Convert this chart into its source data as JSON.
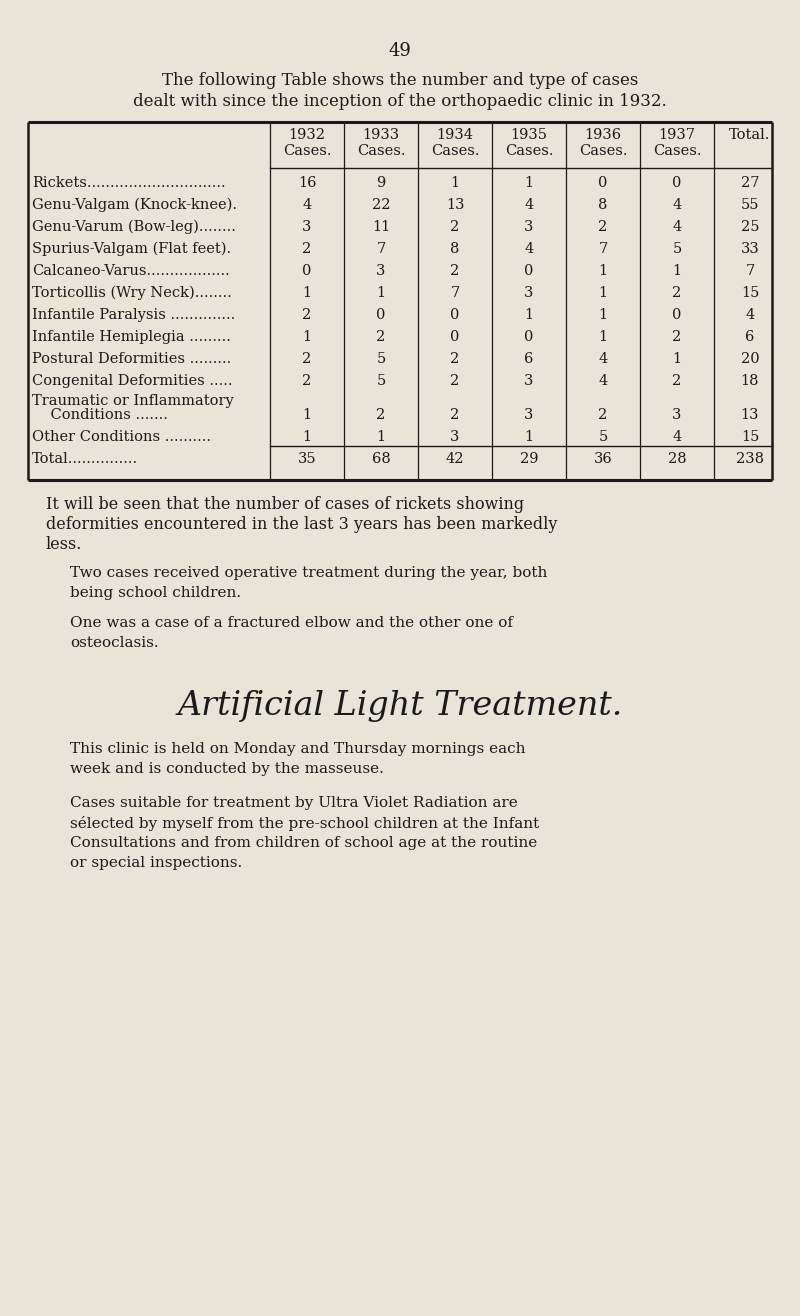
{
  "page_number": "49",
  "bg_color": "#e8e4d8",
  "text_color": "#1a1a1a",
  "intro_text_line1": "The following Table shows the number and type of cases",
  "intro_text_line2": "dealt with since the inception of the orthopaedic clinic in 1932.",
  "col_headers": [
    [
      "1932",
      "Cases."
    ],
    [
      "1933",
      "Cases."
    ],
    [
      "1934",
      "Cases."
    ],
    [
      "1935",
      "Cases."
    ],
    [
      "1936",
      "Cases."
    ],
    [
      "1937",
      "Cases."
    ],
    [
      "Total.",
      ""
    ]
  ],
  "row_labels": [
    [
      "Rickets.............................."
    ],
    [
      "Genu-Valgam (Knock-knee)."
    ],
    [
      "Genu-Varum (Bow-leg)........"
    ],
    [
      "Spurius-Valgam (Flat feet)."
    ],
    [
      "Calcaneo-Varus.................."
    ],
    [
      "Torticollis (Wry Neck)........"
    ],
    [
      "Infantile Paralysis .............."
    ],
    [
      "Infantile Hemiplegia ........."
    ],
    [
      "Postural Deformities ........."
    ],
    [
      "Congenital Deformities ....."
    ],
    [
      "Traumatic or Inflammatory",
      "    Conditions ......."
    ],
    [
      "Other Conditions .........."
    ],
    [
      "Total..............."
    ]
  ],
  "table_data": [
    [
      16,
      9,
      1,
      1,
      0,
      0,
      27
    ],
    [
      4,
      22,
      13,
      4,
      8,
      4,
      55
    ],
    [
      3,
      11,
      2,
      3,
      2,
      4,
      25
    ],
    [
      2,
      7,
      8,
      4,
      7,
      5,
      33
    ],
    [
      0,
      3,
      2,
      0,
      1,
      1,
      7
    ],
    [
      1,
      1,
      7,
      3,
      1,
      2,
      15
    ],
    [
      2,
      0,
      0,
      1,
      1,
      0,
      4
    ],
    [
      1,
      2,
      0,
      0,
      1,
      2,
      6
    ],
    [
      2,
      5,
      2,
      6,
      4,
      1,
      20
    ],
    [
      2,
      5,
      2,
      3,
      4,
      2,
      18
    ],
    [
      1,
      2,
      2,
      3,
      2,
      3,
      13
    ],
    [
      1,
      1,
      3,
      1,
      5,
      4,
      15
    ],
    [
      35,
      68,
      42,
      29,
      36,
      28,
      238
    ]
  ],
  "para1_lines": [
    "It will be seen that the number of cases of rickets showing",
    "deformities encountered in the last 3 years has been markedly",
    "less."
  ],
  "para2_lines": [
    "Two cases received operative treatment during the year, both",
    "being school children."
  ],
  "para3_lines": [
    "One was a case of a fractured elbow and the other one of",
    "osteoclasis."
  ],
  "section_title": "Artificial Light Treatment.",
  "para4_lines": [
    "This clinic is held on Monday and Thursday mornings each",
    "week and is conducted by the masseuse."
  ],
  "para5_lines": [
    "Cases suitable for treatment by Ultra Violet Radiation are",
    "sélected by myself from the pre-school children at the Infant",
    "Consultations and from children of school age at the routine",
    "or special inspections."
  ]
}
